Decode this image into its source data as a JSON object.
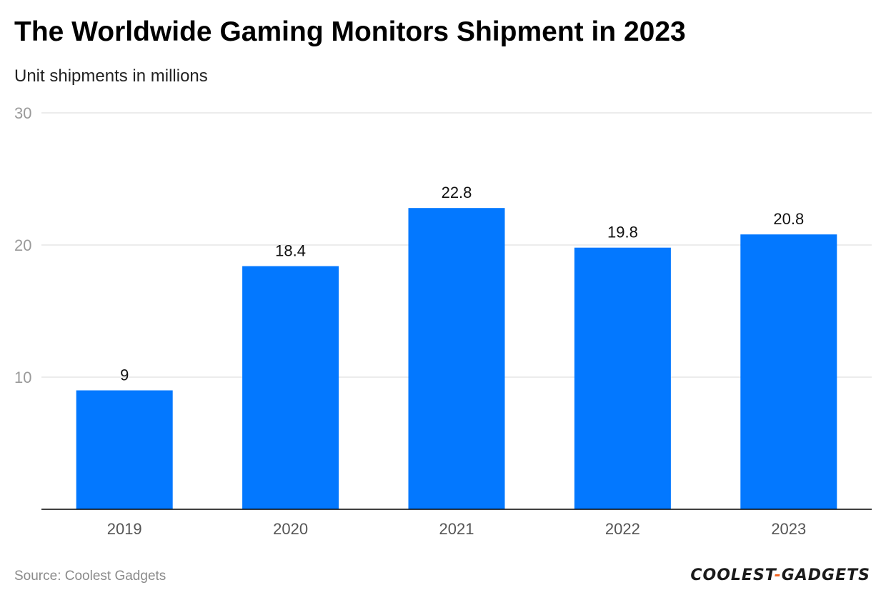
{
  "title": "The Worldwide Gaming Monitors Shipment in 2023",
  "subtitle": "Unit shipments in millions",
  "source": "Source: Coolest Gadgets",
  "brand": {
    "part1": "COOLEST",
    "separator": "-",
    "part2": "GADGETS"
  },
  "colors": {
    "bar": "#0378ff",
    "grid": "#e0e0e0",
    "axis": "#000000",
    "tick_text": "#9a9a9a",
    "category_text": "#555555",
    "value_text": "#111111",
    "brand_accent": "#f26522"
  },
  "chart_data": {
    "type": "bar",
    "title": "The Worldwide Gaming Monitors Shipment in 2023",
    "subtitle": "Unit shipments in millions",
    "categories": [
      "2019",
      "2020",
      "2021",
      "2022",
      "2023"
    ],
    "values": [
      9,
      18.4,
      22.8,
      19.8,
      20.8
    ],
    "value_labels": [
      "9",
      "18.4",
      "22.8",
      "19.8",
      "20.8"
    ],
    "xlabel": "",
    "ylabel": "Unit shipments in millions",
    "ylim": [
      0,
      30
    ],
    "yticks": [
      10,
      20,
      30
    ],
    "grid": true,
    "legend": "none"
  }
}
